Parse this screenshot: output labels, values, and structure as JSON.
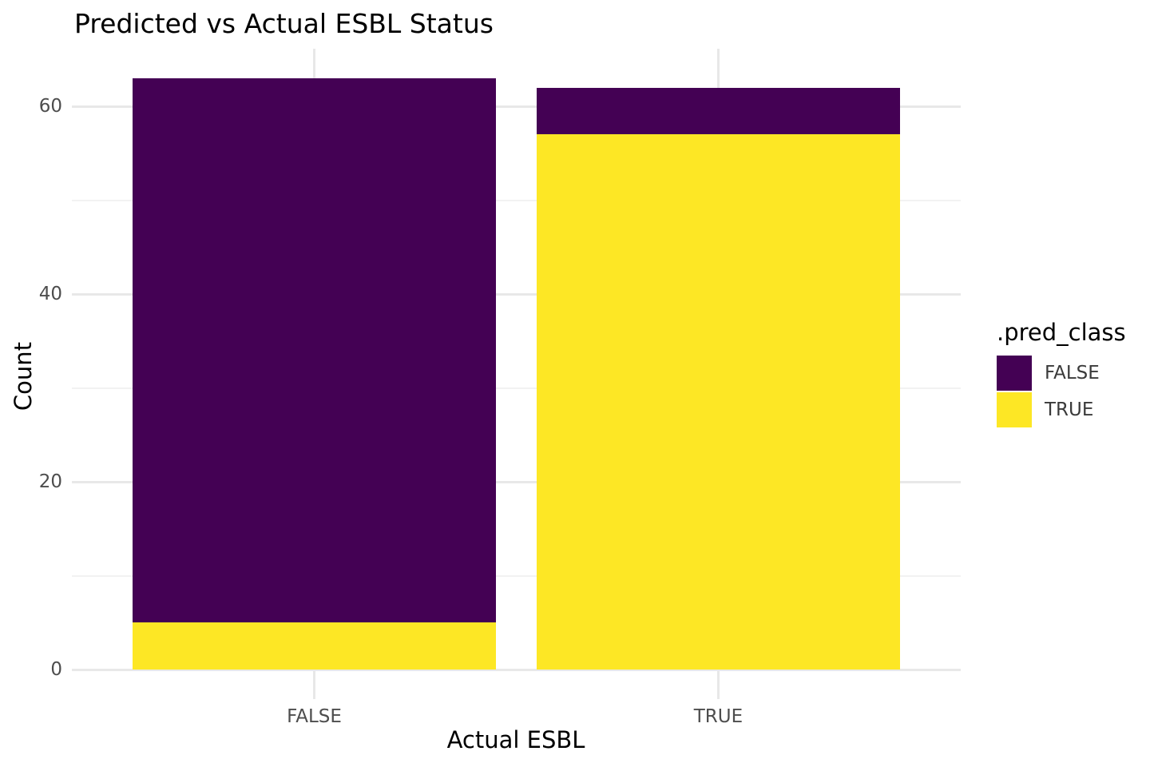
{
  "chart_data": {
    "type": "bar",
    "stacked": true,
    "title": "Predicted vs Actual ESBL Status",
    "xlabel": "Actual ESBL",
    "ylabel": "Count",
    "categories": [
      "FALSE",
      "TRUE"
    ],
    "series": [
      {
        "name": "FALSE",
        "color": "#440154",
        "values": [
          58,
          5
        ]
      },
      {
        "name": "TRUE",
        "color": "#FDE725",
        "values": [
          5,
          57
        ]
      }
    ],
    "totals": [
      63,
      62
    ],
    "stack_order": "first-series-on-top",
    "legend_title": ".pred_class",
    "legend_position": "right",
    "y_ticks_major": [
      0,
      20,
      40,
      60
    ],
    "y_ticks_minor": [
      10,
      30,
      50
    ],
    "ylim": [
      -3.15,
      66.15
    ],
    "bar_width_fraction": 0.9,
    "grid": true
  },
  "colors": {
    "background": "#FFFFFF",
    "grid_major": "#E8E8E8",
    "grid_minor": "#F2F2F2",
    "tick_label": "#4D4D4D",
    "axis_title": "#000000",
    "plot_title": "#000000",
    "legend_label": "#3A3A3A"
  }
}
